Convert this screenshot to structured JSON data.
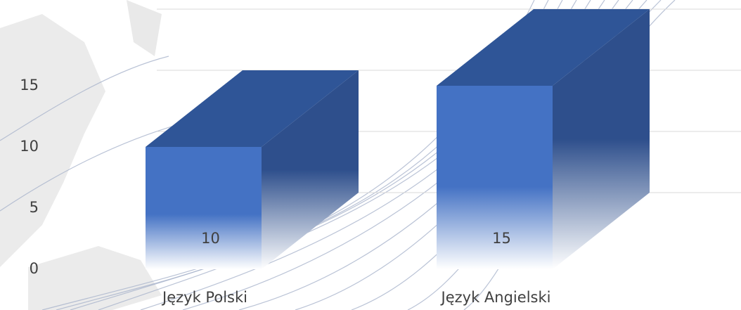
{
  "chart_data": {
    "type": "bar3d",
    "categories": [
      "Język Polski",
      "Język Angielski"
    ],
    "values": [
      10,
      15
    ],
    "color": "#4472c4",
    "ylim": [
      0,
      15
    ],
    "yticks": [
      0,
      5,
      10,
      15
    ],
    "grid": true
  }
}
